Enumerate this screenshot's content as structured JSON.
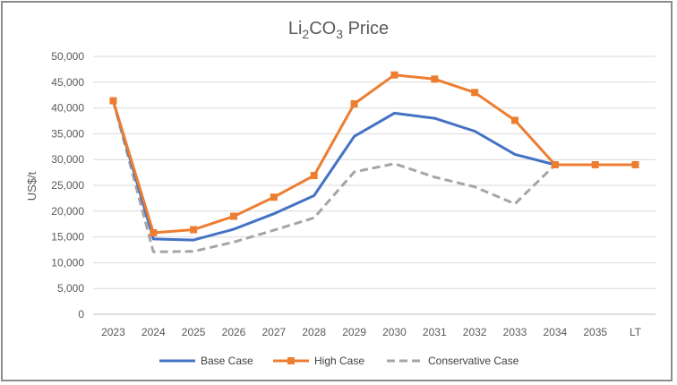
{
  "chart_data": {
    "type": "line",
    "title": {
      "main": "Li",
      "sub1": "2",
      "mid": "CO",
      "sub2": "3",
      "tail": " Price"
    },
    "ylabel": "US$/t",
    "xlabel": "",
    "ylim": [
      0,
      50000
    ],
    "yticks": [
      "0",
      "5,000",
      "10,000",
      "15,000",
      "20,000",
      "25,000",
      "30,000",
      "35,000",
      "40,000",
      "45,000",
      "50,000"
    ],
    "categories": [
      "2023",
      "2024",
      "2025",
      "2026",
      "2027",
      "2028",
      "2029",
      "2030",
      "2031",
      "2032",
      "2033",
      "2034",
      "2035",
      "LT"
    ],
    "grid": true,
    "legend_position": "bottom",
    "series": [
      {
        "name": "Base Case",
        "color": "#4472c4",
        "style": "solid",
        "marker": "none",
        "values": [
          41400,
          14600,
          14400,
          16500,
          19500,
          23000,
          34500,
          39000,
          38000,
          35500,
          31000,
          29000,
          29000,
          29000
        ]
      },
      {
        "name": "High Case",
        "color": "#ed7d31",
        "style": "solid",
        "marker": "square",
        "values": [
          41400,
          15800,
          16400,
          19000,
          22700,
          26900,
          40800,
          46400,
          45600,
          43000,
          37600,
          29000,
          29000,
          29000
        ]
      },
      {
        "name": "Conservative Case",
        "color": "#a5a5a5",
        "style": "dashed",
        "marker": "none",
        "values": [
          41400,
          12100,
          12200,
          14000,
          16300,
          18700,
          27600,
          29200,
          26600,
          24700,
          21400,
          29000,
          29000,
          29000
        ]
      }
    ]
  }
}
